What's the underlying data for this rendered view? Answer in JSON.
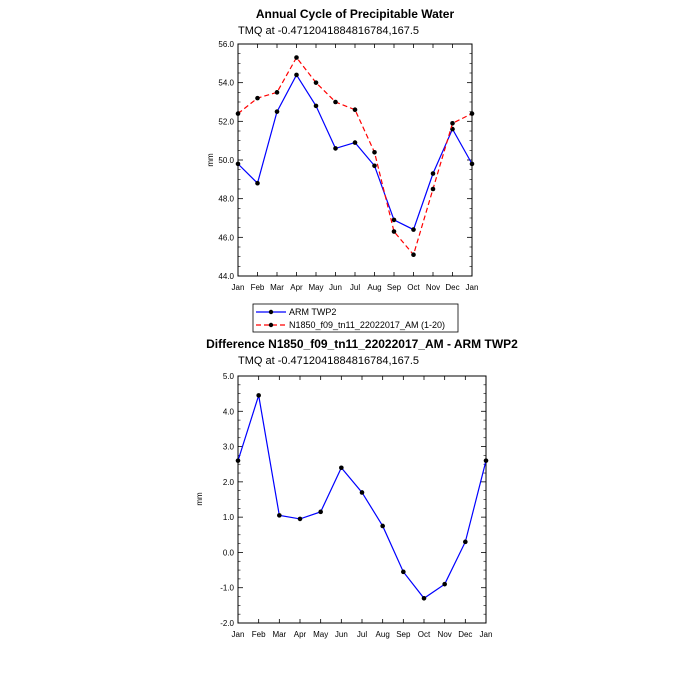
{
  "chart_data": [
    {
      "type": "line",
      "title": "Annual Cycle of Precipitable Water",
      "subtitle": "TMQ at -0.4712041884816784,167.5",
      "xlabel": "",
      "ylabel": "mm",
      "categories": [
        "Jan",
        "Feb",
        "Mar",
        "Apr",
        "May",
        "Jun",
        "Jul",
        "Aug",
        "Sep",
        "Oct",
        "Nov",
        "Dec",
        "Jan"
      ],
      "ylim": [
        44.0,
        56.0
      ],
      "yticks": [
        "44.0",
        "46.0",
        "48.0",
        "50.0",
        "52.0",
        "54.0",
        "56.0"
      ],
      "series": [
        {
          "name": "ARM TWP2",
          "color": "#0000ff",
          "style": "solid",
          "values": [
            49.8,
            48.8,
            52.5,
            54.4,
            52.8,
            50.6,
            50.9,
            49.7,
            46.9,
            46.4,
            49.3,
            51.6,
            49.8
          ]
        },
        {
          "name": "N1850_f09_tn11_22022017_AM (1-20)",
          "color": "#ff0000",
          "style": "dashed",
          "values": [
            52.4,
            53.2,
            53.5,
            55.3,
            54.0,
            53.0,
            52.6,
            50.4,
            46.3,
            45.1,
            48.5,
            51.9,
            52.4
          ]
        }
      ]
    },
    {
      "type": "line",
      "title": "Difference N1850_f09_tn11_22022017_AM - ARM TWP2",
      "subtitle": "TMQ at -0.4712041884816784,167.5",
      "xlabel": "",
      "ylabel": "mm",
      "categories": [
        "Jan",
        "Feb",
        "Mar",
        "Apr",
        "May",
        "Jun",
        "Jul",
        "Aug",
        "Sep",
        "Oct",
        "Nov",
        "Dec",
        "Jan"
      ],
      "ylim": [
        -2.0,
        5.0
      ],
      "yticks": [
        "-2.0",
        "-1.0",
        "0.0",
        "1.0",
        "2.0",
        "3.0",
        "4.0",
        "5.0"
      ],
      "series": [
        {
          "name": "Difference",
          "color": "#0000ff",
          "style": "solid",
          "values": [
            2.6,
            4.45,
            1.05,
            0.95,
            1.15,
            2.4,
            1.7,
            0.75,
            -0.55,
            -1.3,
            -0.9,
            0.3,
            2.6
          ]
        }
      ]
    }
  ]
}
